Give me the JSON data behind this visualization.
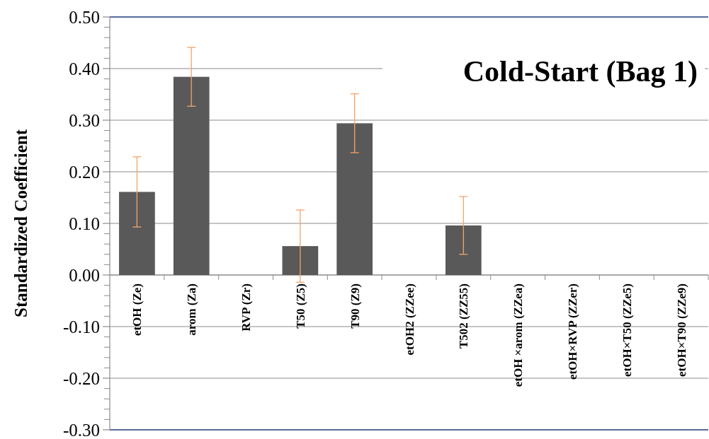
{
  "chart_data": {
    "type": "bar",
    "title": "Cold-Start (Bag 1)",
    "ylabel": "Standardized Coefficient",
    "categories": [
      "etOH (Ze)",
      "arom (Za)",
      "RVP (Zr)",
      "T50 (Z5)",
      "T90 (Z9)",
      "etOH2 (ZZee)",
      "T502 (ZZ55)",
      "etOH ×arom (ZZea)",
      "etOH×RVP (ZZer)",
      "etOH×T50 (ZZe5)",
      "etOH×T90 (ZZe9)"
    ],
    "values": [
      0.161,
      0.384,
      null,
      0.056,
      0.294,
      null,
      0.096,
      null,
      null,
      null,
      null
    ],
    "errors": [
      0.068,
      0.057,
      null,
      0.07,
      0.057,
      null,
      0.056,
      null,
      null,
      null,
      null
    ],
    "color": "#595959",
    "ylim": [
      -0.3,
      0.5
    ],
    "yticks": [
      {
        "value": -0.3,
        "label": "-0.30"
      },
      {
        "value": -0.2,
        "label": "-0.20"
      },
      {
        "value": -0.1,
        "label": "-0.10"
      },
      {
        "value": 0,
        "label": "0.00"
      },
      {
        "value": 0.1,
        "label": "0.10"
      },
      {
        "value": 0.2,
        "label": "0.20"
      },
      {
        "value": 0.3,
        "label": "0.30"
      },
      {
        "value": 0.4,
        "label": "0.40"
      },
      {
        "value": 0.5,
        "label": "0.50"
      }
    ],
    "grid": "y"
  }
}
